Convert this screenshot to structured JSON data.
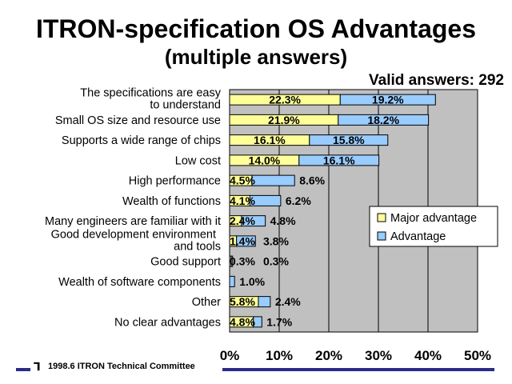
{
  "chart_data": {
    "type": "bar",
    "orientation": "horizontal",
    "stacked": true,
    "title": "ITRON-specification OS Advantages",
    "subtitle": "(multiple answers)",
    "annotation": "Valid answers: 292",
    "categories": [
      "The specifications are easy to understand",
      "Small OS size and resource use",
      "Supports a wide range of chips",
      "Low cost",
      "High performance",
      "Wealth of functions",
      "Many engineers are familiar with it",
      "Good development environment and tools",
      "Good support",
      "Wealth of software components",
      "Other",
      "No clear advantages"
    ],
    "series": [
      {
        "name": "Major advantage",
        "color": "#ffff99",
        "values": [
          22.3,
          21.9,
          16.1,
          14.0,
          4.5,
          4.1,
          2.4,
          1.4,
          0.3,
          0,
          5.8,
          4.8
        ],
        "labels": [
          "22.3%",
          "21.9%",
          "16.1%",
          "14.0%",
          "4.5%",
          "4.1%",
          "2.4%",
          "1.4%",
          "0.3%",
          "",
          "5.8%",
          "4.8%"
        ]
      },
      {
        "name": "Advantage",
        "color": "#99ccff",
        "values": [
          19.2,
          18.2,
          15.8,
          16.1,
          8.6,
          6.2,
          4.8,
          3.8,
          0.3,
          1.0,
          2.4,
          1.7
        ],
        "labels": [
          "19.2%",
          "18.2%",
          "15.8%",
          "16.1%",
          "8.6%",
          "6.2%",
          "4.8%",
          "3.8%",
          "0.3%",
          "1.0%",
          "2.4%",
          "1.7%"
        ]
      }
    ],
    "x_ticks": [
      "0%",
      "10%",
      "20%",
      "30%",
      "40%",
      "50%"
    ],
    "xlim": [
      0,
      50
    ],
    "grid": true,
    "plot_background": "#c0c0c0",
    "legend_position": "right"
  },
  "footer": {
    "text": "1998.6  ITRON Technical Committee",
    "accent_color": "#2a2a8c"
  }
}
